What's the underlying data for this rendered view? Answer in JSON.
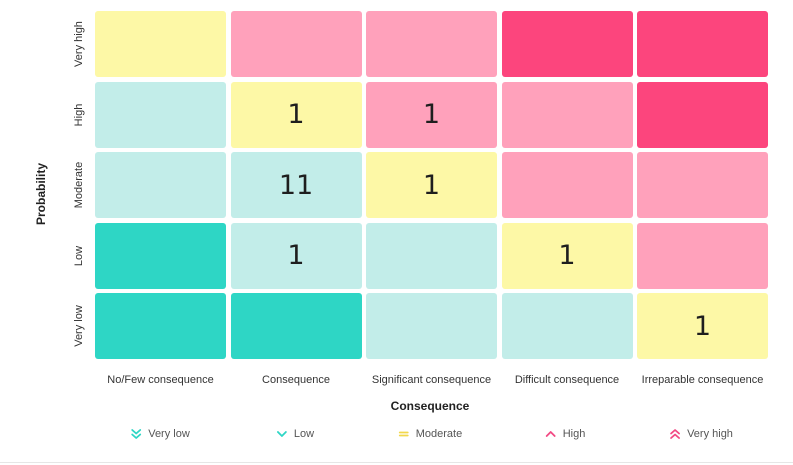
{
  "chart_data": {
    "type": "heatmap",
    "xlabel": "Consequence",
    "ylabel": "Probability",
    "columns": [
      "No/Few consequence",
      "Consequence",
      "Significant consequence",
      "Difficult consequence",
      "Irreparable consequence"
    ],
    "rows": [
      "Very high",
      "High",
      "Moderate",
      "Low",
      "Very low"
    ],
    "risk_levels": [
      [
        "Moderate",
        "High",
        "High",
        "Very high",
        "Very high"
      ],
      [
        "Low",
        "Moderate",
        "High",
        "High",
        "Very high"
      ],
      [
        "Low",
        "Low",
        "Moderate",
        "High",
        "High"
      ],
      [
        "Very low",
        "Low",
        "Low",
        "Moderate",
        "High"
      ],
      [
        "Very low",
        "Very low",
        "Low",
        "Low",
        "Moderate"
      ]
    ],
    "counts": [
      [
        null,
        null,
        null,
        null,
        null
      ],
      [
        null,
        1,
        1,
        null,
        null
      ],
      [
        null,
        11,
        1,
        null,
        null
      ],
      [
        null,
        1,
        null,
        1,
        null
      ],
      [
        null,
        null,
        null,
        null,
        1
      ]
    ],
    "level_colors": {
      "Very low": "#2ED6C5",
      "Low": "#C2EDE9",
      "Moderate": "#FDF8A6",
      "High": "#FFA1BB",
      "Very high": "#FC457D"
    },
    "legend": [
      {
        "label": "Very low",
        "icon": "double-chevron-down-icon",
        "color": "#2ED6C5"
      },
      {
        "label": "Low",
        "icon": "chevron-down-icon",
        "color": "#2ED6C5"
      },
      {
        "label": "Moderate",
        "icon": "equals-icon",
        "color": "#F2D84B"
      },
      {
        "label": "High",
        "icon": "chevron-up-icon",
        "color": "#F24A84"
      },
      {
        "label": "Very high",
        "icon": "double-chevron-up-icon",
        "color": "#F24A84"
      }
    ]
  }
}
